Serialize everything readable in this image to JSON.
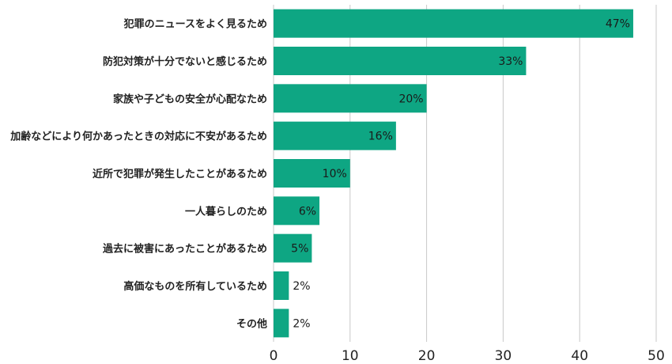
{
  "chart_data": {
    "type": "bar",
    "orientation": "horizontal",
    "categories": [
      "犯罪のニュースをよく見るため",
      "防犯対策が十分でないと感じるため",
      "家族や子どもの安全が心配なため",
      "加齢などにより何かあったときの対応に不安があるため",
      "近所で犯罪が発生したことがあるため",
      "一人暮らしのため",
      "過去に被害にあったことがあるため",
      "高価なものを所有しているため",
      "その他"
    ],
    "values": [
      47,
      33,
      20,
      16,
      10,
      6,
      5,
      2,
      2
    ],
    "value_labels": [
      "47%",
      "33%",
      "20%",
      "16%",
      "10%",
      "6%",
      "5%",
      "2%",
      "2%"
    ],
    "xlim": [
      0,
      50
    ],
    "xticks": [
      0,
      10,
      20,
      30,
      40,
      50
    ],
    "xtick_labels": [
      "0",
      "10",
      "20",
      "30",
      "40",
      "50"
    ],
    "title": "",
    "xlabel": "",
    "ylabel": "",
    "grid": "vertical",
    "legend": "none",
    "colors": {
      "bar": "#0ea683",
      "grid": "#c8c8c8",
      "text": "#222222"
    }
  }
}
